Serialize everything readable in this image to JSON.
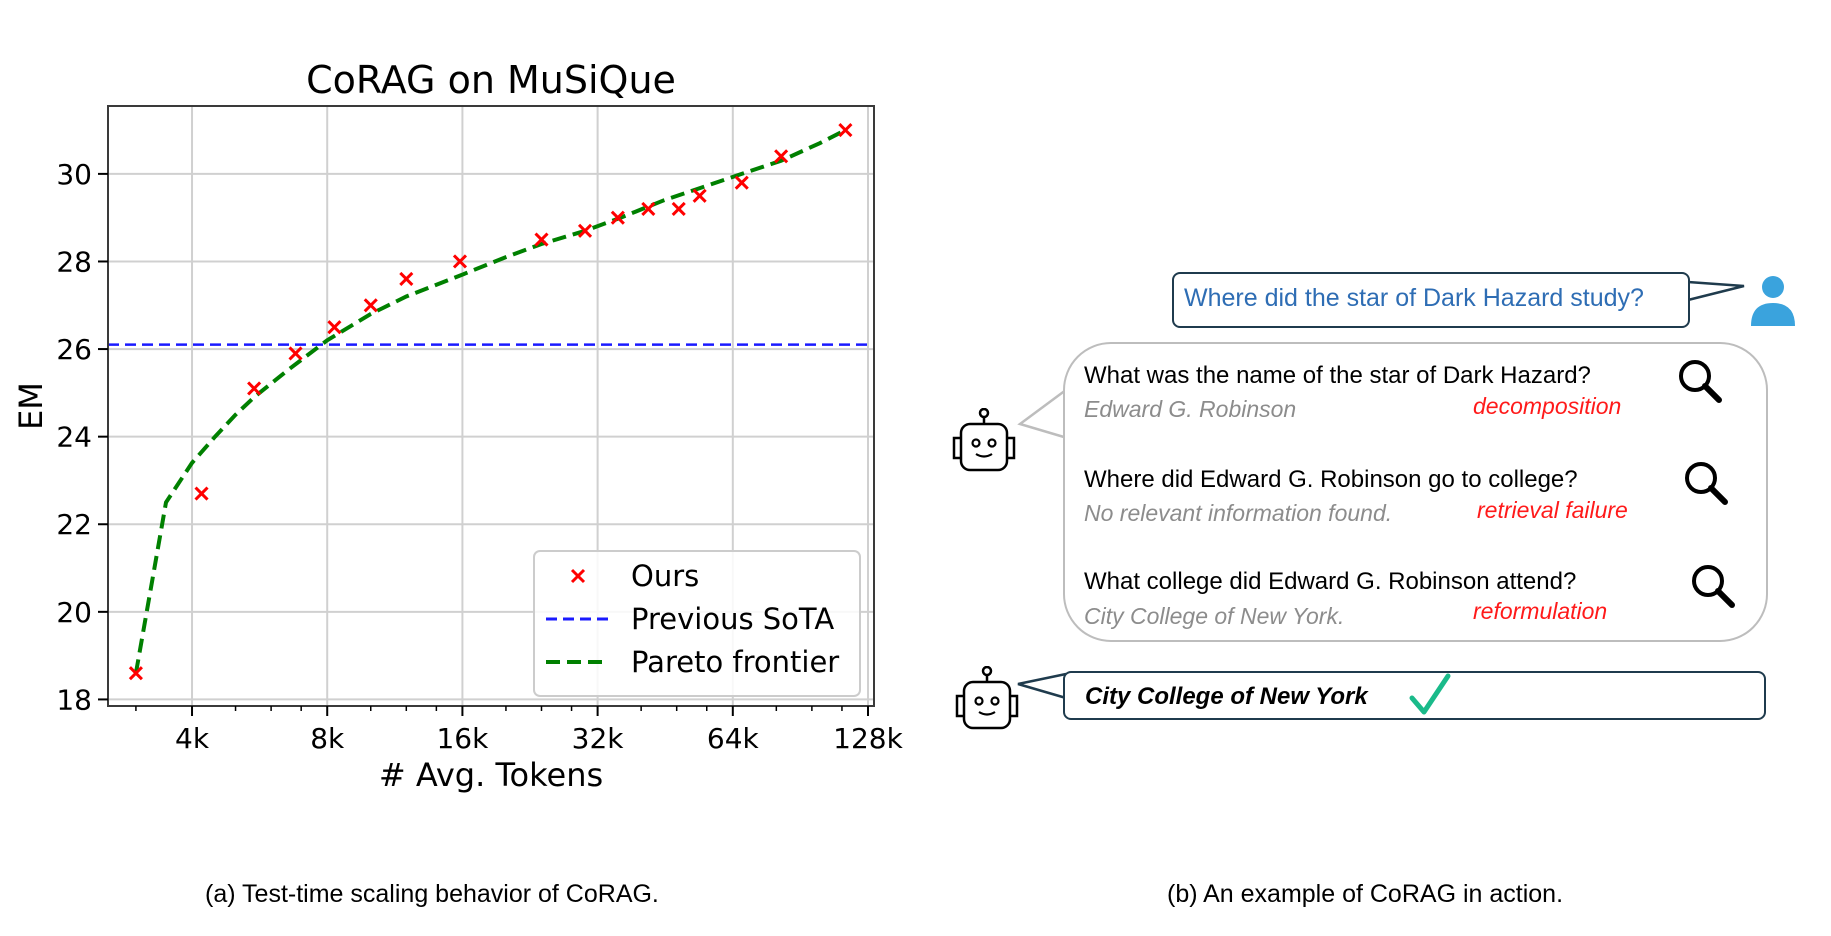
{
  "chart_data": {
    "type": "scatter",
    "title": "CoRAG on MuSiQue",
    "xlabel": "# Avg. Tokens",
    "ylabel": "EM",
    "x_scale": "log2",
    "xlim": [
      2600,
      132000
    ],
    "ylim": [
      17.85,
      31.55
    ],
    "x_ticks": [
      4000,
      8000,
      16000,
      32000,
      64000,
      128000
    ],
    "x_tick_labels": [
      "4k",
      "8k",
      "16k",
      "32k",
      "64k",
      "128k"
    ],
    "y_ticks": [
      18,
      20,
      22,
      24,
      26,
      28,
      30
    ],
    "y_tick_labels": [
      "18",
      "20",
      "22",
      "24",
      "26",
      "28",
      "30"
    ],
    "grid": true,
    "legend_position": "bottom-right",
    "series": [
      {
        "name": "Ours",
        "marker": "x",
        "color": "#ff0000",
        "x": [
          3000,
          4200,
          5500,
          6800,
          8300,
          10000,
          12000,
          15800,
          24000,
          30000,
          35500,
          41500,
          48500,
          54000,
          67000,
          82000,
          114000
        ],
        "y": [
          18.6,
          22.7,
          25.1,
          25.9,
          26.5,
          27.0,
          27.6,
          28.0,
          28.5,
          28.7,
          29.0,
          29.2,
          29.2,
          29.5,
          29.8,
          30.4,
          31.0
        ]
      },
      {
        "name": "Previous SoTA",
        "line": "dashed",
        "color": "#1a1aff",
        "x": [
          2600,
          132000
        ],
        "y": [
          26.1,
          26.1
        ]
      },
      {
        "name": "Pareto frontier",
        "line": "dashed",
        "color": "#008000",
        "x": [
          3000,
          3500,
          4000,
          4500,
          5000,
          5500,
          6500,
          8000,
          10000,
          12000,
          16000,
          20000,
          24000,
          30000,
          36000,
          45000,
          55000,
          67000,
          82000,
          100000,
          114000
        ],
        "y": [
          18.6,
          22.5,
          23.4,
          24.0,
          24.5,
          24.9,
          25.5,
          26.2,
          26.8,
          27.2,
          27.7,
          28.1,
          28.4,
          28.7,
          29.0,
          29.4,
          29.7,
          30.0,
          30.3,
          30.7,
          31.0
        ]
      }
    ]
  },
  "captions": {
    "a": "(a)  Test-time scaling behavior of CoRAG.",
    "b": "(b)  An example of CoRAG in action."
  },
  "example": {
    "question": "Where did the star of Dark Hazard study?",
    "steps": [
      {
        "query": "What was the name of the star of Dark Hazard?",
        "answer": "Edward G. Robinson",
        "tag": "decomposition"
      },
      {
        "query": "Where did Edward G. Robinson go to college?",
        "answer": "No relevant information found.",
        "tag": "retrieval failure"
      },
      {
        "query": "What college did Edward G. Robinson attend?",
        "answer": "City College of New York.",
        "tag": "reformulation"
      }
    ],
    "final_answer": "City College of New York",
    "colors": {
      "question_text": "#2e6db4",
      "tag_text": "#ff1a1a",
      "check": "#1aba8a",
      "user_icon": "#3aa3dd"
    },
    "icons": [
      "user-icon",
      "robot-icon",
      "magnifier-icon",
      "check-icon"
    ]
  }
}
